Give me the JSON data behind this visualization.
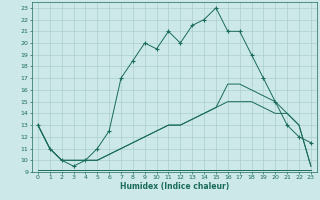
{
  "xlabel": "Humidex (Indice chaleur)",
  "bg_color": "#cce8e8",
  "grid_color": "#aacfcf",
  "line_color": "#1a6b5a",
  "xlim": [
    -0.5,
    23.5
  ],
  "ylim": [
    9,
    23.5
  ],
  "xticks": [
    0,
    1,
    2,
    3,
    4,
    5,
    6,
    7,
    8,
    9,
    10,
    11,
    12,
    13,
    14,
    15,
    16,
    17,
    18,
    19,
    20,
    21,
    22,
    23
  ],
  "yticks": [
    9,
    10,
    11,
    12,
    13,
    14,
    15,
    16,
    17,
    18,
    19,
    20,
    21,
    22,
    23
  ],
  "line1_x": [
    0,
    1,
    2,
    3,
    4,
    5,
    6,
    7,
    8,
    9,
    10,
    11,
    12,
    13,
    14,
    15,
    16,
    17,
    18,
    19,
    20,
    21,
    22,
    23
  ],
  "line1_y": [
    13,
    11,
    10,
    9.5,
    10,
    11,
    12.5,
    17,
    18.5,
    20,
    19.5,
    21,
    20,
    21.5,
    22,
    23,
    21,
    21,
    19,
    17,
    15,
    13,
    12,
    11.5
  ],
  "line2_x": [
    0,
    1,
    2,
    3,
    4,
    5,
    6,
    7,
    8,
    9,
    10,
    11,
    12,
    13,
    14,
    15,
    16,
    17,
    18,
    19,
    20,
    21,
    22,
    23
  ],
  "line2_y": [
    9.2,
    9.2,
    9.2,
    9.2,
    9.2,
    9.2,
    9.2,
    9.2,
    9.2,
    9.2,
    9.2,
    9.2,
    9.2,
    9.2,
    9.2,
    9.2,
    9.2,
    9.2,
    9.2,
    9.2,
    9.2,
    9.2,
    9.2,
    9.2
  ],
  "line3_x": [
    0,
    1,
    2,
    3,
    4,
    5,
    6,
    7,
    8,
    9,
    10,
    11,
    12,
    13,
    14,
    15,
    16,
    17,
    18,
    19,
    20,
    21,
    22,
    23
  ],
  "line3_y": [
    13,
    11,
    10,
    10,
    10,
    10,
    10.5,
    11,
    11.5,
    12,
    12.5,
    13,
    13,
    13.5,
    14,
    14.5,
    15,
    15,
    15,
    14.5,
    14,
    14,
    13,
    9.5
  ],
  "line4_x": [
    0,
    1,
    2,
    3,
    4,
    5,
    6,
    7,
    8,
    9,
    10,
    11,
    12,
    13,
    14,
    15,
    16,
    17,
    18,
    19,
    20,
    21,
    22,
    23
  ],
  "line4_y": [
    13,
    11,
    10,
    10,
    10,
    10,
    10.5,
    11,
    11.5,
    12,
    12.5,
    13,
    13,
    13.5,
    14,
    14.5,
    16.5,
    16.5,
    16,
    15.5,
    15,
    14,
    13,
    9.5
  ]
}
